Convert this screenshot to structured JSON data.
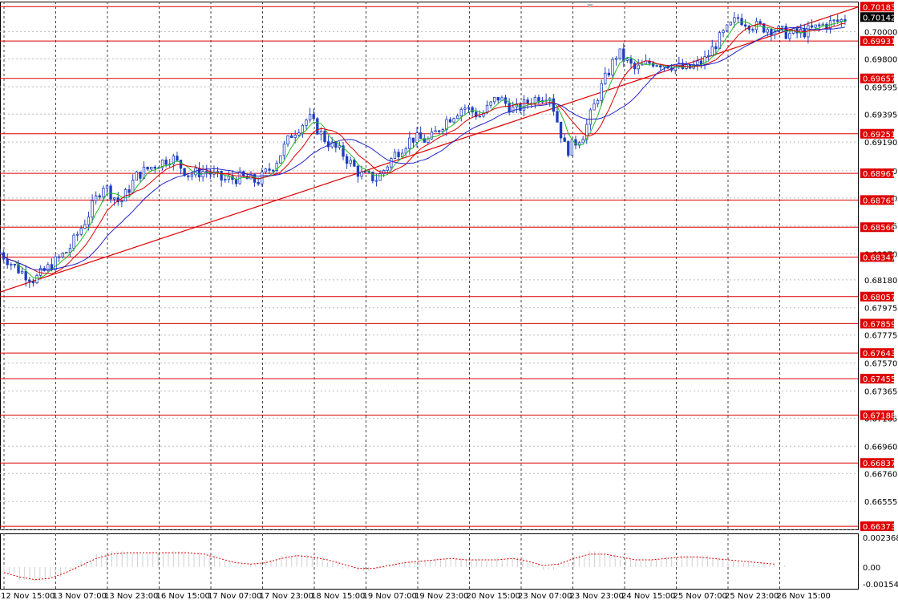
{
  "colors": {
    "background": "#ffffff",
    "grid": "#000000",
    "candle": "#1f3fbf",
    "level_line": "#dd0000",
    "trendline": "#dd0000",
    "ma_fast": "#22bb22",
    "ma_mid": "#dd0000",
    "ma_slow": "#2222cc",
    "osc_pos": "#d0d0d0",
    "osc_signal": "#dd0000",
    "price_tag_bg": "#dd0000",
    "price_tag_text": "#ffffff"
  },
  "chart_data": [
    {
      "type": "candlestick",
      "instrument_hint": "price chart",
      "y_axis_ticks": [
        "0.70000",
        "0.69800",
        "0.69595",
        "0.69395",
        "0.69190",
        "0.68980",
        "0.68780",
        "0.68575",
        "0.68370",
        "0.68180",
        "0.67975",
        "0.67775",
        "0.67570",
        "0.67365",
        "0.67165",
        "0.66960",
        "0.66760",
        "0.66555",
        "0.66350"
      ],
      "ylim": [
        0.6635,
        0.7022
      ],
      "x_axis_ticks": [
        "12 Nov 15:00",
        "13 Nov 07:00",
        "13 Nov 23:00",
        "16 Nov 15:00",
        "17 Nov 07:00",
        "17 Nov 23:00",
        "18 Nov 15:00",
        "19 Nov 07:00",
        "19 Nov 23:00",
        "20 Nov 15:00",
        "23 Nov 07:00",
        "23 Nov 23:00",
        "24 Nov 15:00",
        "25 Nov 07:00",
        "25 Nov 23:00",
        "26 Nov 15:00"
      ],
      "current_price_labels": [
        "0.70183",
        "0.70142"
      ],
      "horizontal_levels": [
        "0.70183",
        "0.69931",
        "0.69657",
        "0.69251",
        "0.68961",
        "0.68765",
        "0.68566",
        "0.68347",
        "0.68057",
        "0.67859",
        "0.67643",
        "0.67455",
        "0.67188",
        "0.66837",
        "0.66373"
      ],
      "trendline": {
        "from": [
          0,
          0.6809
        ],
        "to": [
          1,
          0.7018
        ]
      },
      "price_path": [
        {
          "t": 0.0,
          "v": 0.6838
        },
        {
          "t": 0.02,
          "v": 0.6826
        },
        {
          "t": 0.04,
          "v": 0.6818
        },
        {
          "t": 0.06,
          "v": 0.6829
        },
        {
          "t": 0.08,
          "v": 0.684
        },
        {
          "t": 0.1,
          "v": 0.6862
        },
        {
          "t": 0.12,
          "v": 0.6888
        },
        {
          "t": 0.14,
          "v": 0.6874
        },
        {
          "t": 0.16,
          "v": 0.6895
        },
        {
          "t": 0.18,
          "v": 0.6902
        },
        {
          "t": 0.2,
          "v": 0.6908
        },
        {
          "t": 0.22,
          "v": 0.6895
        },
        {
          "t": 0.24,
          "v": 0.6898
        },
        {
          "t": 0.26,
          "v": 0.6891
        },
        {
          "t": 0.28,
          "v": 0.6893
        },
        {
          "t": 0.3,
          "v": 0.689
        },
        {
          "t": 0.32,
          "v": 0.6903
        },
        {
          "t": 0.34,
          "v": 0.6925
        },
        {
          "t": 0.36,
          "v": 0.6937
        },
        {
          "t": 0.38,
          "v": 0.692
        },
        {
          "t": 0.4,
          "v": 0.691
        },
        {
          "t": 0.42,
          "v": 0.6895
        },
        {
          "t": 0.44,
          "v": 0.6892
        },
        {
          "t": 0.46,
          "v": 0.691
        },
        {
          "t": 0.48,
          "v": 0.6922
        },
        {
          "t": 0.5,
          "v": 0.692
        },
        {
          "t": 0.52,
          "v": 0.6935
        },
        {
          "t": 0.54,
          "v": 0.6945
        },
        {
          "t": 0.56,
          "v": 0.6938
        },
        {
          "t": 0.58,
          "v": 0.6952
        },
        {
          "t": 0.6,
          "v": 0.6942
        },
        {
          "t": 0.62,
          "v": 0.695
        },
        {
          "t": 0.64,
          "v": 0.6955
        },
        {
          "t": 0.66,
          "v": 0.6912
        },
        {
          "t": 0.68,
          "v": 0.6925
        },
        {
          "t": 0.7,
          "v": 0.6958
        },
        {
          "t": 0.72,
          "v": 0.6985
        },
        {
          "t": 0.74,
          "v": 0.6972
        },
        {
          "t": 0.76,
          "v": 0.6978
        },
        {
          "t": 0.78,
          "v": 0.6976
        },
        {
          "t": 0.8,
          "v": 0.6972
        },
        {
          "t": 0.82,
          "v": 0.6978
        },
        {
          "t": 0.84,
          "v": 0.6996
        },
        {
          "t": 0.86,
          "v": 0.701
        },
        {
          "t": 0.88,
          "v": 0.7004
        },
        {
          "t": 0.9,
          "v": 0.7002
        },
        {
          "t": 0.92,
          "v": 0.6998
        },
        {
          "t": 0.94,
          "v": 0.7
        },
        {
          "t": 0.96,
          "v": 0.7005
        },
        {
          "t": 0.98,
          "v": 0.7008
        },
        {
          "t": 1.0,
          "v": 0.7014
        }
      ]
    },
    {
      "type": "area",
      "role": "oscillator",
      "y_axis_ticks": [
        "0.002368",
        "0.00",
        "-0.001541"
      ],
      "ylim": [
        -0.001541,
        0.002368
      ],
      "histogram": [
        -0.0005,
        -0.0009,
        -0.001,
        -0.0007,
        -0.0002,
        0.0004,
        0.0009,
        0.0011,
        0.001,
        0.0009,
        0.001,
        0.0011,
        0.001,
        0.0008,
        0.0004,
        0.0001,
        0.0002,
        0.0005,
        0.0008,
        0.0009,
        0.0007,
        0.0003,
        -0.0001,
        -0.0003,
        -0.0001,
        0.0002,
        0.0004,
        0.0005,
        0.0006,
        0.0006,
        0.0005,
        0.0004,
        0.0006,
        0.0007,
        0.0003,
        -0.0002,
        0.0003,
        0.0008,
        0.0011,
        0.0009,
        0.0005,
        0.0004,
        0.0005,
        0.0007,
        0.0008,
        0.0008,
        0.0006,
        0.0004,
        0.0003,
        0.0002,
        0.0001
      ],
      "signal": [
        -0.0004,
        -0.0007,
        -0.0009,
        -0.0008,
        -0.0004,
        0.0001,
        0.0006,
        0.0009,
        0.001,
        0.001,
        0.001,
        0.001,
        0.001,
        0.0009,
        0.0006,
        0.0003,
        0.0002,
        0.0003,
        0.0006,
        0.0008,
        0.0007,
        0.0005,
        0.0002,
        -0.0001,
        -0.0001,
        0.0001,
        0.0003,
        0.0004,
        0.0005,
        0.0006,
        0.0005,
        0.0005,
        0.0005,
        0.0006,
        0.0004,
        0.0001,
        0.0002,
        0.0006,
        0.0009,
        0.0009,
        0.0007,
        0.0005,
        0.0005,
        0.0006,
        0.0007,
        0.0007,
        0.0006,
        0.0005,
        0.0004,
        0.0003,
        0.0002
      ]
    }
  ]
}
